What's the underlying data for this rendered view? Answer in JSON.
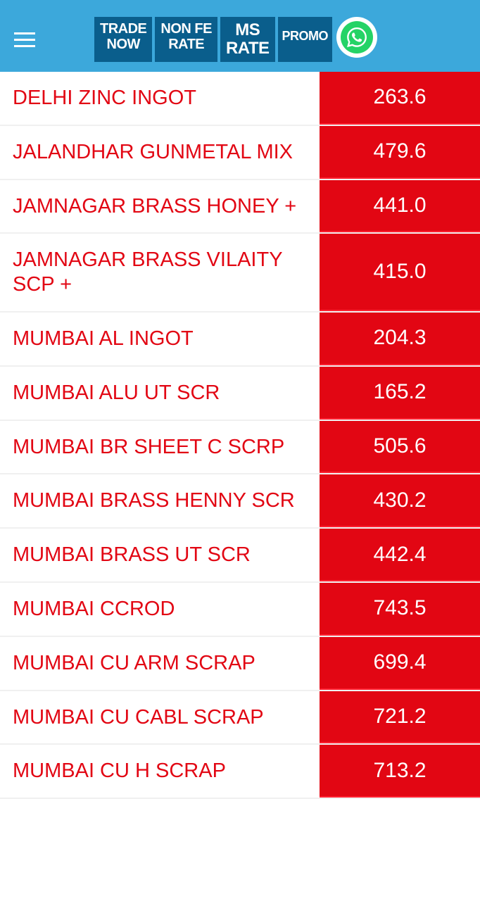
{
  "header": {
    "nav_buttons": [
      {
        "line1": "TRADE",
        "line2": "NOW"
      },
      {
        "line1": "NON FE",
        "line2": "RATE"
      },
      {
        "line1": "MS",
        "line2": "RATE"
      },
      {
        "line1": "PROMO",
        "line2": ""
      }
    ]
  },
  "colors": {
    "header_bg": "#3ca8db",
    "nav_btn_bg": "#0a5e8c",
    "accent_red": "#e20613",
    "whatsapp_green": "#25d366",
    "white": "#ffffff"
  },
  "table": {
    "rows": [
      {
        "name": "DELHI ZINC INGOT",
        "value": "263.6"
      },
      {
        "name": "JALANDHAR GUNMETAL MIX",
        "value": "479.6"
      },
      {
        "name": "JAMNAGAR BRASS HONEY +",
        "value": "441.0"
      },
      {
        "name": "JAMNAGAR BRASS VILAITY SCP +",
        "value": "415.0"
      },
      {
        "name": "MUMBAI AL INGOT",
        "value": "204.3"
      },
      {
        "name": "MUMBAI ALU UT SCR",
        "value": "165.2"
      },
      {
        "name": "MUMBAI BR SHEET C SCRP",
        "value": "505.6"
      },
      {
        "name": "MUMBAI BRASS HENNY SCR",
        "value": "430.2"
      },
      {
        "name": "MUMBAI BRASS UT SCR",
        "value": "442.4"
      },
      {
        "name": "MUMBAI CCROD",
        "value": "743.5"
      },
      {
        "name": "MUMBAI CU ARM SCRAP",
        "value": "699.4"
      },
      {
        "name": "MUMBAI CU CABL SCRAP",
        "value": "721.2"
      },
      {
        "name": "MUMBAI CU H SCRAP",
        "value": "713.2"
      }
    ]
  }
}
